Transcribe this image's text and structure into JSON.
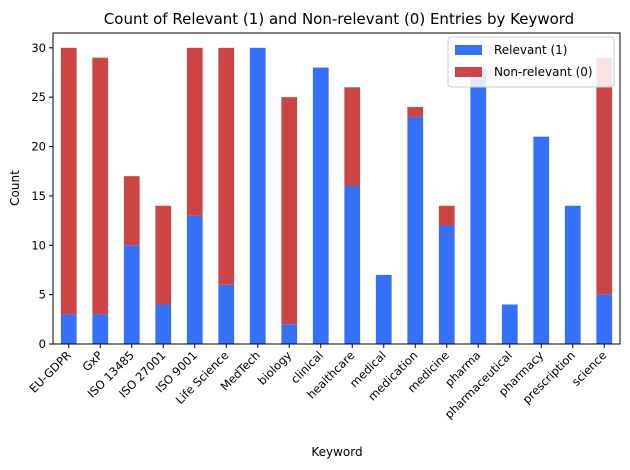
{
  "chart_data": {
    "type": "bar",
    "stacked": true,
    "title": "Count of Relevant (1) and Non-relevant (0) Entries by Keyword",
    "xlabel": "Keyword",
    "ylabel": "Count",
    "ylim": [
      0,
      31.5
    ],
    "yticks": [
      "0",
      "5",
      "10",
      "15",
      "20",
      "25",
      "30"
    ],
    "grid": false,
    "legend_position": "top-right",
    "categories": [
      "EU-GDPR",
      "GxP",
      "ISO 13485",
      "ISO 27001",
      "ISO 9001",
      "Life Science",
      "MedTech",
      "biology",
      "clinical",
      "healthcare",
      "medical",
      "medication",
      "medicine",
      "pharma",
      "pharmaceutical",
      "pharmacy",
      "prescription",
      "science"
    ],
    "series": [
      {
        "name": "Relevant (1)",
        "color": "#3470f8",
        "values": [
          3,
          3,
          10,
          4,
          13,
          6,
          30,
          2,
          28,
          16,
          7,
          23,
          12,
          28,
          4,
          21,
          14,
          5
        ]
      },
      {
        "name": "Non-relevant (0)",
        "color": "#cc4444",
        "values": [
          27,
          26,
          7,
          10,
          17,
          24,
          0,
          23,
          0,
          10,
          0,
          1,
          2,
          0,
          0,
          0,
          0,
          24
        ]
      }
    ]
  }
}
